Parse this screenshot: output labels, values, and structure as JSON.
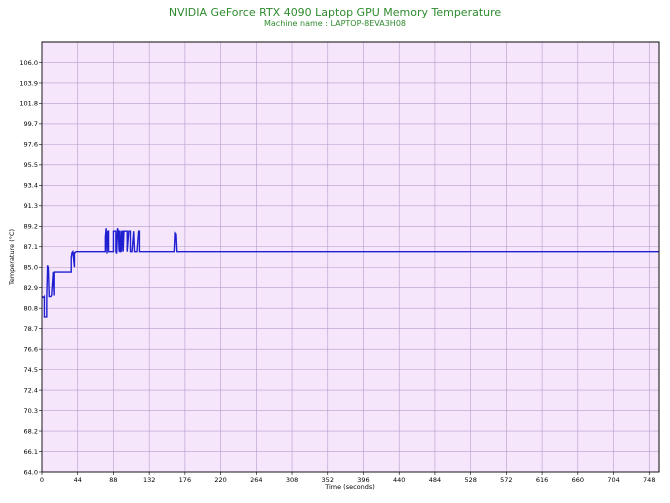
{
  "chart_data": {
    "type": "line",
    "title": "NVIDIA GeForce RTX 4090 Laptop GPU Memory Temperature",
    "subtitle": "Machine name : LAPTOP-8EVA3H08",
    "xlabel": "Time (seconds)",
    "ylabel": "Temperature (°C)",
    "xlim": [
      0,
      760
    ],
    "ylim": [
      64.0,
      108.1
    ],
    "grid": true,
    "colors": {
      "plot_background": "#f5e6fc",
      "grid": "#b79bc9",
      "line": "#1f1fd1",
      "title": "#2e8b2e"
    },
    "x_ticks": [
      "0",
      "44",
      "88",
      "132",
      "176",
      "220",
      "264",
      "308",
      "352",
      "396",
      "440",
      "484",
      "528",
      "572",
      "616",
      "660",
      "704",
      "748"
    ],
    "y_ticks": [
      "64.0",
      "66.1",
      "68.2",
      "70.3",
      "72.4",
      "74.5",
      "76.6",
      "78.7",
      "80.8",
      "82.9",
      "85.0",
      "87.1",
      "89.2",
      "91.3",
      "93.4",
      "95.5",
      "97.6",
      "99.7",
      "101.8",
      "103.9",
      "106.0"
    ],
    "series": [
      {
        "x": [
          0,
          2,
          3,
          3,
          5,
          6,
          6,
          7,
          8,
          9,
          11,
          12,
          14,
          15,
          15,
          16,
          17,
          18,
          22,
          26,
          34,
          36,
          36,
          37,
          38,
          40,
          40,
          41,
          42,
          60,
          78,
          78,
          79,
          80,
          80,
          81,
          82,
          82,
          83,
          84,
          86,
          88,
          88,
          90,
          91,
          91,
          92,
          93,
          94,
          95,
          95,
          96,
          96,
          97,
          98,
          98,
          99,
          100,
          100,
          101,
          102,
          103,
          105,
          105,
          107,
          109,
          109,
          111,
          113,
          113,
          114,
          115,
          116,
          117,
          119,
          120,
          120,
          122,
          163,
          164,
          165,
          166,
          167,
          200,
          400,
          600,
          760
        ],
        "y": [
          82.0,
          81.9,
          82.0,
          79.9,
          79.9,
          79.9,
          81.9,
          85.2,
          84.9,
          82.0,
          82.0,
          82.1,
          84.5,
          82.1,
          84.5,
          84.5,
          84.5,
          84.5,
          84.5,
          84.5,
          84.5,
          84.5,
          86.0,
          86.5,
          86.6,
          85.0,
          86.5,
          86.5,
          86.6,
          86.6,
          86.6,
          88.1,
          89.0,
          86.6,
          86.4,
          88.7,
          88.7,
          86.6,
          86.6,
          86.6,
          86.6,
          86.6,
          88.7,
          88.7,
          88.7,
          86.6,
          86.4,
          89.0,
          88.7,
          86.6,
          88.7,
          88.7,
          86.6,
          86.6,
          88.7,
          86.6,
          88.7,
          88.7,
          86.6,
          88.7,
          88.7,
          88.7,
          88.7,
          86.6,
          88.7,
          88.7,
          86.6,
          86.6,
          88.7,
          88.7,
          86.6,
          86.6,
          86.6,
          86.6,
          88.7,
          88.7,
          86.6,
          86.6,
          86.6,
          88.5,
          88.4,
          86.6,
          86.6,
          86.6,
          86.6,
          86.6,
          86.6
        ]
      }
    ]
  }
}
